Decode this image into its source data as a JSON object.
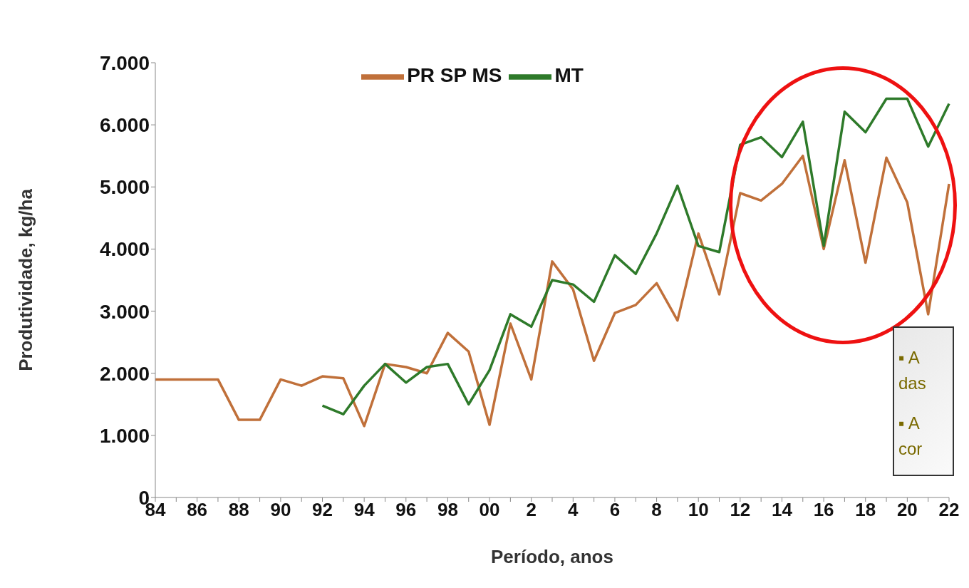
{
  "chart_data": {
    "type": "line",
    "xlabel": "Período, anos",
    "ylabel": "Produtividade,  kg/ha",
    "categories": [
      "84",
      null,
      "86",
      null,
      "88",
      null,
      "90",
      null,
      "92",
      null,
      "94",
      null,
      "96",
      null,
      "98",
      null,
      "00",
      null,
      "2",
      null,
      "4",
      null,
      "6",
      null,
      "8",
      null,
      "10",
      null,
      "12",
      null,
      "14",
      null,
      "16",
      null,
      "18",
      null,
      "20",
      null,
      "22"
    ],
    "series": [
      {
        "name": "PR SP MS",
        "color": "#c0703a",
        "values": [
          1900,
          1900,
          1900,
          1900,
          1250,
          1250,
          1900,
          1800,
          1950,
          1920,
          1150,
          2150,
          2100,
          2000,
          2650,
          2350,
          1170,
          2800,
          1900,
          3800,
          3350,
          2200,
          2970,
          3100,
          3450,
          2850,
          4250,
          3270,
          4900,
          4780,
          5050,
          5500,
          4000,
          5430,
          3780,
          5470,
          4750,
          2950,
          5050
        ]
      },
      {
        "name": "MT",
        "color": "#2e7a2a",
        "values": [
          null,
          null,
          null,
          null,
          null,
          null,
          null,
          null,
          1480,
          1340,
          1800,
          2150,
          1850,
          2100,
          2150,
          1500,
          2050,
          2950,
          2750,
          3500,
          3430,
          3150,
          3900,
          3600,
          4250,
          5020,
          4050,
          3950,
          5680,
          5800,
          5480,
          6050,
          4050,
          6210,
          5880,
          6420,
          6420,
          5650,
          6340
        ]
      }
    ],
    "ylim": [
      0,
      7000
    ],
    "yticks": [
      {
        "value": 0,
        "label": "0"
      },
      {
        "value": 1000,
        "label": "1.000"
      },
      {
        "value": 2000,
        "label": "2.000"
      },
      {
        "value": 3000,
        "label": "3.000"
      },
      {
        "value": 4000,
        "label": "4.000"
      },
      {
        "value": 5000,
        "label": "5.000"
      },
      {
        "value": 6000,
        "label": "6.000"
      },
      {
        "value": 7000,
        "label": "7.000"
      }
    ],
    "annotations": [
      "▪ A",
      "das",
      "▪ A",
      "cor"
    ],
    "grid": false,
    "legend": "top",
    "marker": "none",
    "line_style": "solid"
  }
}
